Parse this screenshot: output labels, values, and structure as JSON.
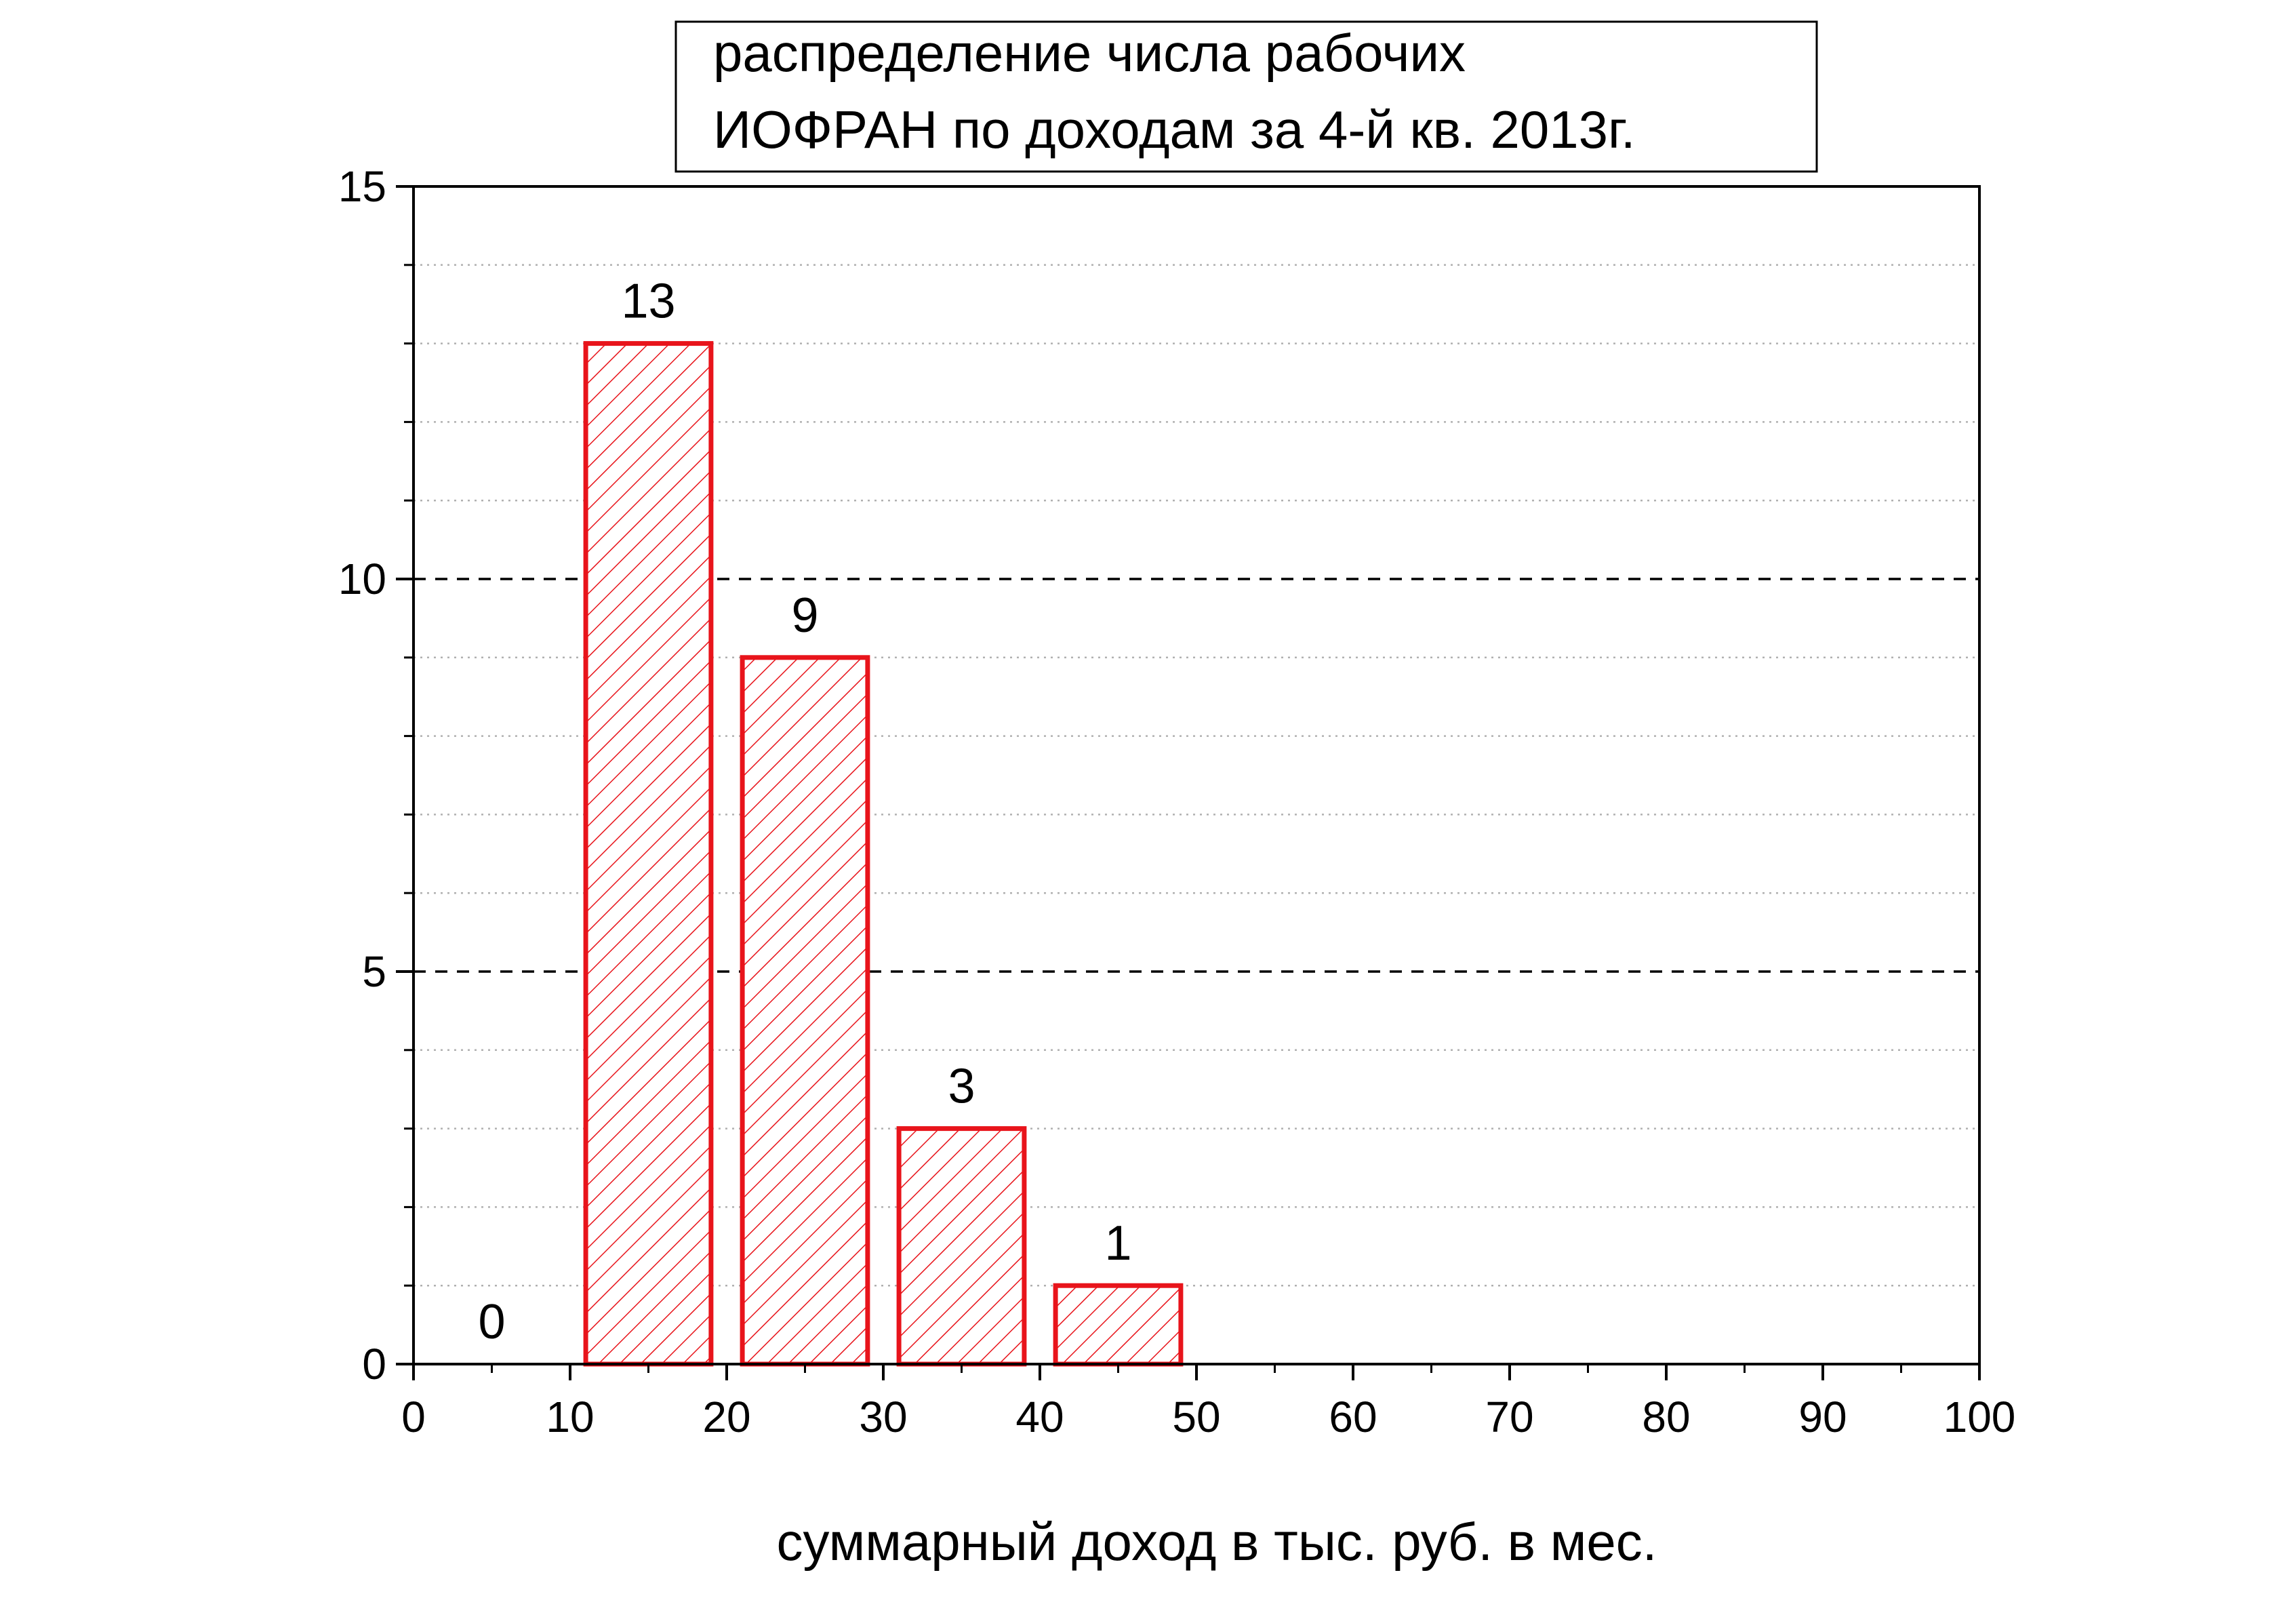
{
  "chart_data": {
    "type": "bar",
    "title_lines": [
      "распределение числа рабочих",
      "ИОФРАН по доходам за 4-й кв.  2013г."
    ],
    "xlabel": "суммарный доход в тыс. руб. в мес.",
    "ylabel": "",
    "xlim": [
      0,
      100
    ],
    "ylim": [
      0,
      15
    ],
    "x_ticks": [
      0,
      10,
      20,
      30,
      40,
      50,
      60,
      70,
      80,
      90,
      100
    ],
    "y_ticks": [
      0,
      5,
      10,
      15
    ],
    "y_minor_step": 1,
    "grid": "dashed major y-gridlines at 5 and 10, dotted minor y-gridlines",
    "bar_color": "#e8141b",
    "bar_fill": "diagonal hatch",
    "bars": [
      {
        "x0": 0,
        "x1": 10,
        "value": 0,
        "label": "0"
      },
      {
        "x0": 11,
        "x1": 19,
        "value": 13,
        "label": "13"
      },
      {
        "x0": 21,
        "x1": 29,
        "value": 9,
        "label": "9"
      },
      {
        "x0": 31,
        "x1": 39,
        "value": 3,
        "label": "3"
      },
      {
        "x0": 41,
        "x1": 49,
        "value": 1,
        "label": "1"
      }
    ]
  }
}
